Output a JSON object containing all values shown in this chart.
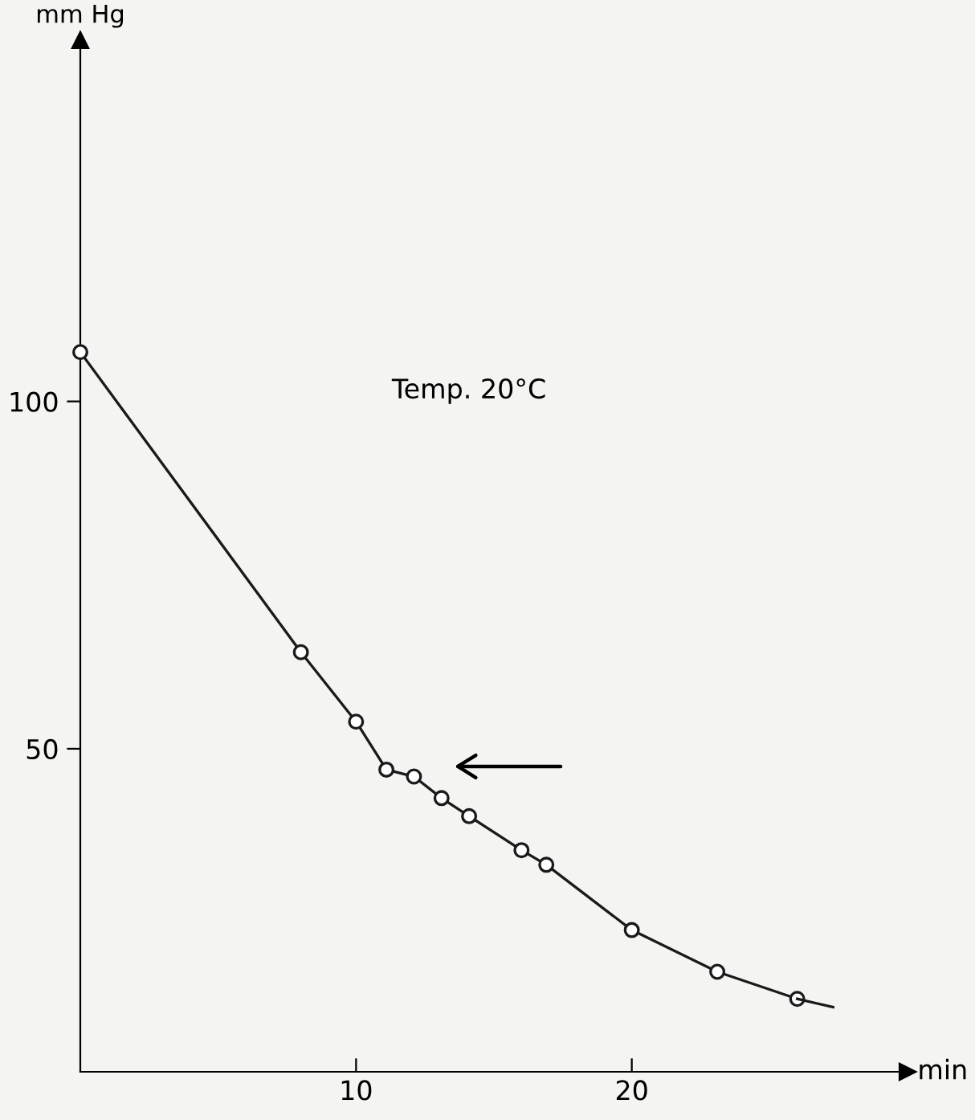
{
  "chart_data": {
    "type": "line",
    "xlabel": "min",
    "ylabel": "mm Hg",
    "annotations": [
      "Temp. 20°C"
    ],
    "series": [
      {
        "color": "#1a1a1a",
        "marker": "circle",
        "x": [
          0,
          8,
          10,
          11.1,
          12.1,
          13.1,
          14.1,
          16,
          16.9,
          20,
          23.1,
          26
        ],
        "values": [
          107.1,
          63.9,
          53.9,
          47.0,
          46.0,
          42.9,
          40.3,
          35.4,
          33.3,
          23.9,
          17.9,
          14.0
        ]
      },
      {
        "color": "#1a1a1a",
        "marker": "none",
        "x": [
          26,
          27.3
        ],
        "values": [
          14.0,
          12.8
        ]
      }
    ],
    "xlim": [
      0,
      30
    ],
    "ylim": [
      3.5,
      152
    ],
    "xticks": [
      10,
      20
    ],
    "yticks": [
      50,
      100
    ],
    "grid": false,
    "legend": false
  }
}
